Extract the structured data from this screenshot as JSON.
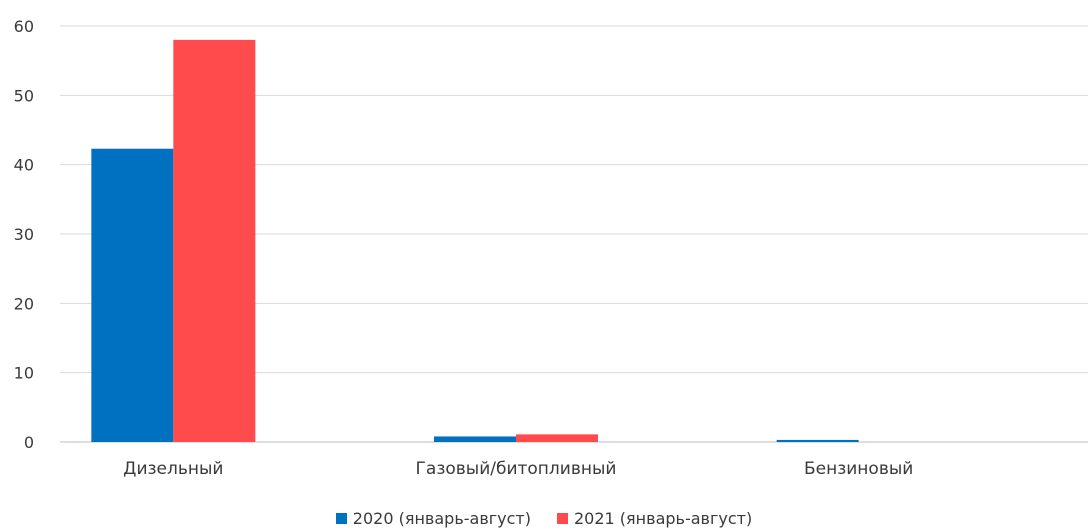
{
  "chart_data": {
    "type": "bar",
    "title": "",
    "xlabel": "",
    "ylabel": "",
    "categories": [
      "Дизельный",
      "Газовый/битопливный",
      "Бензиновый"
    ],
    "series": [
      {
        "name": "2020 (январь-август)",
        "color": "#0070c0",
        "values": [
          42.3,
          0.8,
          0.3
        ]
      },
      {
        "name": "2021 (январь-август)",
        "color": "#ff4b4b",
        "values": [
          58,
          1.1,
          0
        ]
      }
    ],
    "ylim": [
      0,
      60
    ],
    "yticks": [
      "0",
      "10",
      "20",
      "30",
      "40",
      "50",
      "60"
    ],
    "grid": true,
    "legend_position": "bottom"
  }
}
